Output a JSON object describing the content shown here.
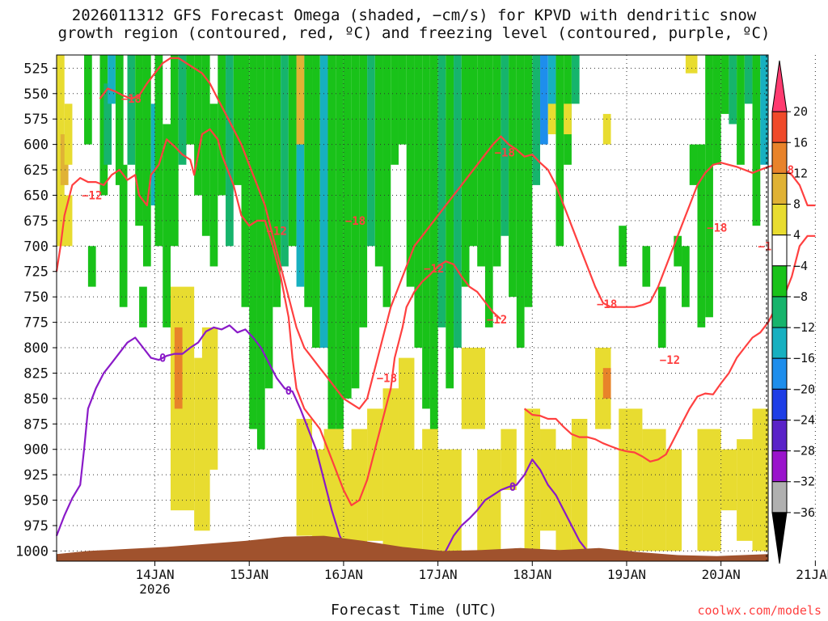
{
  "title_line1": "2026011312 GFS Forecast Omega (shaded, −cm/s) for KPVD with dendritic snow",
  "title_line2": "growth region (contoured, red, ºC) and freezing level (contoured, purple, ºC)",
  "xlabel": "Forecast Time (UTC)",
  "credit": "coolwx.com/models",
  "chart_data": {
    "type": "heatmap",
    "title": "2026011312 GFS Forecast Omega (shaded, −cm/s) for KPVD with dendritic snow growth region (contoured, red, ºC) and freezing level (contoured, purple, ºC)",
    "xlabel": "Forecast Time (UTC)",
    "ylabel": "",
    "y_unit": "hPa",
    "y_axis": "pressure, inverted (1000 at bottom)",
    "ylim": [
      1010,
      512
    ],
    "y_ticks": [
      "525",
      "550",
      "575",
      "600",
      "625",
      "650",
      "675",
      "700",
      "725",
      "750",
      "775",
      "800",
      "825",
      "850",
      "875",
      "900",
      "925",
      "950",
      "975",
      "1000"
    ],
    "xlim_hours": [
      -13,
      168
    ],
    "x_ticks": [
      {
        "label": "14JAN",
        "sub": "2026",
        "hour": 12
      },
      {
        "label": "15JAN",
        "sub": "",
        "hour": 36
      },
      {
        "label": "16JAN",
        "sub": "",
        "hour": 60
      },
      {
        "label": "17JAN",
        "sub": "",
        "hour": 84
      },
      {
        "label": "18JAN",
        "sub": "",
        "hour": 108
      },
      {
        "label": "19JAN",
        "sub": "",
        "hour": 132
      },
      {
        "label": "20JAN",
        "sub": "",
        "hour": 156
      },
      {
        "label": "21JAN",
        "sub": "",
        "hour": 180
      }
    ],
    "colorbar": {
      "labels": [
        "20",
        "16",
        "12",
        "8",
        "4",
        "−4",
        "−8",
        "−12",
        "−16",
        "−20",
        "−24",
        "−28",
        "−32",
        "−36"
      ],
      "colors": [
        "#ff3b70",
        "#f04a2a",
        "#e8832a",
        "#e0b235",
        "#e8dc30",
        "#ffffff",
        "#19c219",
        "#16b46c",
        "#17b0c0",
        "#1e8eec",
        "#1e3ee6",
        "#5a22c8",
        "#9a14cc",
        "#b0b0b0",
        "#000000"
      ]
    },
    "omega_colors": {
      "y4": "#e8dc30",
      "y8": "#e0b235",
      "o12": "#e8832a",
      "g4": "#19c219",
      "t8": "#16b46c",
      "c12": "#17b0c0",
      "b16": "#1e8eec",
      "terrain": "#a0522d"
    },
    "series": [
      {
        "name": "−12",
        "color": "#ff4040",
        "label_pos": [
          [
            -4,
            650
          ],
          [
            43,
            685
          ],
          [
            83,
            722
          ],
          [
            99,
            772
          ],
          [
            143,
            812
          ],
          [
            168,
            700
          ]
        ],
        "path": [
          [
            -13,
            725
          ],
          [
            -12,
            700
          ],
          [
            -11,
            670
          ],
          [
            -9,
            640
          ],
          [
            -7,
            633
          ],
          [
            -5,
            637
          ],
          [
            -3,
            637
          ],
          [
            -1,
            640
          ],
          [
            1,
            630
          ],
          [
            3,
            625
          ],
          [
            5,
            635
          ],
          [
            7,
            630
          ],
          [
            8,
            650
          ],
          [
            10,
            660
          ],
          [
            11,
            630
          ],
          [
            13,
            620
          ],
          [
            15,
            595
          ],
          [
            17,
            602
          ],
          [
            19,
            610
          ],
          [
            21,
            615
          ],
          [
            22,
            630
          ],
          [
            24,
            590
          ],
          [
            26,
            585
          ],
          [
            28,
            595
          ],
          [
            29,
            610
          ],
          [
            30,
            620
          ],
          [
            32,
            640
          ],
          [
            34,
            670
          ],
          [
            36,
            680
          ],
          [
            38,
            675
          ],
          [
            40,
            675
          ],
          [
            42,
            700
          ],
          [
            44,
            730
          ],
          [
            46,
            770
          ],
          [
            47,
            810
          ],
          [
            48,
            840
          ],
          [
            50,
            860
          ],
          [
            52,
            870
          ],
          [
            54,
            880
          ],
          [
            56,
            900
          ],
          [
            58,
            920
          ],
          [
            60,
            940
          ],
          [
            62,
            955
          ],
          [
            64,
            950
          ],
          [
            66,
            930
          ],
          [
            68,
            900
          ],
          [
            70,
            870
          ],
          [
            72,
            840
          ],
          [
            73,
            810
          ],
          [
            75,
            780
          ],
          [
            76,
            760
          ],
          [
            78,
            745
          ],
          [
            80,
            735
          ],
          [
            82,
            728
          ],
          [
            84,
            720
          ],
          [
            86,
            715
          ],
          [
            88,
            718
          ],
          [
            90,
            730
          ],
          [
            92,
            740
          ],
          [
            94,
            745
          ],
          [
            96,
            755
          ],
          [
            98,
            765
          ],
          [
            100,
            772
          ]
        ]
      },
      {
        "name": "−12",
        "color": "#ff4040",
        "path": [
          [
            106,
            860
          ],
          [
            108,
            866
          ],
          [
            110,
            867
          ],
          [
            112,
            870
          ],
          [
            114,
            870
          ],
          [
            116,
            878
          ],
          [
            118,
            885
          ],
          [
            120,
            888
          ],
          [
            122,
            888
          ],
          [
            124,
            890
          ],
          [
            126,
            894
          ],
          [
            128,
            897
          ],
          [
            130,
            900
          ],
          [
            132,
            902
          ],
          [
            134,
            903
          ],
          [
            136,
            907
          ],
          [
            138,
            912
          ],
          [
            140,
            910
          ],
          [
            142,
            905
          ],
          [
            144,
            890
          ],
          [
            146,
            875
          ],
          [
            148,
            860
          ],
          [
            150,
            848
          ],
          [
            152,
            845
          ],
          [
            154,
            846
          ],
          [
            156,
            835
          ],
          [
            158,
            825
          ],
          [
            160,
            810
          ],
          [
            162,
            800
          ],
          [
            164,
            790
          ],
          [
            166,
            785
          ],
          [
            168,
            775
          ],
          [
            170,
            760
          ],
          [
            172,
            750
          ],
          [
            174,
            730
          ],
          [
            176,
            700
          ],
          [
            178,
            690
          ],
          [
            180,
            690
          ]
        ]
      },
      {
        "name": "−18",
        "color": "#ff4040",
        "label_pos": [
          [
            6,
            555
          ],
          [
            63,
            675
          ],
          [
            71,
            830
          ],
          [
            101,
            608
          ],
          [
            127,
            757
          ],
          [
            155,
            682
          ],
          [
            172,
            625
          ]
        ],
        "path": [
          [
            -2,
            555
          ],
          [
            0,
            545
          ],
          [
            2,
            548
          ],
          [
            4,
            552
          ],
          [
            6,
            555
          ],
          [
            8,
            552
          ],
          [
            10,
            540
          ],
          [
            12,
            530
          ],
          [
            14,
            520
          ],
          [
            16,
            515
          ],
          [
            18,
            515
          ],
          [
            20,
            520
          ],
          [
            22,
            525
          ],
          [
            24,
            530
          ],
          [
            26,
            540
          ],
          [
            28,
            555
          ],
          [
            30,
            570
          ],
          [
            32,
            585
          ],
          [
            34,
            600
          ],
          [
            36,
            620
          ],
          [
            38,
            640
          ],
          [
            40,
            660
          ],
          [
            42,
            690
          ],
          [
            44,
            720
          ],
          [
            46,
            750
          ],
          [
            48,
            780
          ],
          [
            50,
            800
          ],
          [
            52,
            810
          ],
          [
            54,
            820
          ],
          [
            56,
            830
          ],
          [
            58,
            840
          ],
          [
            60,
            850
          ],
          [
            62,
            855
          ],
          [
            64,
            860
          ],
          [
            66,
            850
          ],
          [
            68,
            820
          ],
          [
            70,
            790
          ],
          [
            72,
            760
          ],
          [
            74,
            740
          ],
          [
            76,
            720
          ],
          [
            78,
            700
          ],
          [
            80,
            690
          ],
          [
            82,
            680
          ],
          [
            84,
            670
          ],
          [
            86,
            660
          ],
          [
            88,
            650
          ],
          [
            90,
            640
          ],
          [
            92,
            630
          ],
          [
            94,
            620
          ],
          [
            96,
            610
          ],
          [
            98,
            600
          ],
          [
            100,
            592
          ],
          [
            102,
            600
          ],
          [
            104,
            605
          ],
          [
            106,
            612
          ],
          [
            108,
            610
          ],
          [
            110,
            618
          ],
          [
            112,
            625
          ],
          [
            114,
            640
          ],
          [
            116,
            660
          ],
          [
            118,
            680
          ],
          [
            120,
            700
          ],
          [
            122,
            720
          ],
          [
            124,
            740
          ],
          [
            126,
            756
          ],
          [
            128,
            760
          ],
          [
            130,
            760
          ],
          [
            132,
            760
          ],
          [
            134,
            760
          ],
          [
            136,
            758
          ],
          [
            138,
            755
          ],
          [
            140,
            740
          ],
          [
            142,
            720
          ],
          [
            144,
            700
          ],
          [
            146,
            680
          ],
          [
            148,
            660
          ],
          [
            150,
            640
          ],
          [
            152,
            628
          ],
          [
            154,
            620
          ],
          [
            156,
            618
          ],
          [
            158,
            620
          ],
          [
            160,
            622
          ],
          [
            162,
            625
          ],
          [
            164,
            628
          ],
          [
            166,
            625
          ],
          [
            168,
            622
          ],
          [
            170,
            620
          ],
          [
            172,
            625
          ],
          [
            174,
            630
          ],
          [
            176,
            640
          ],
          [
            178,
            660
          ],
          [
            180,
            660
          ]
        ]
      },
      {
        "name": "0",
        "color": "#8a1ac8",
        "label_pos": [
          [
            14,
            810
          ],
          [
            46,
            842
          ],
          [
            103,
            937
          ]
        ],
        "path": [
          [
            -13,
            985
          ],
          [
            -11,
            965
          ],
          [
            -9,
            948
          ],
          [
            -7,
            935
          ],
          [
            -6,
            900
          ],
          [
            -5,
            860
          ],
          [
            -3,
            840
          ],
          [
            -1,
            825
          ],
          [
            1,
            815
          ],
          [
            3,
            805
          ],
          [
            5,
            795
          ],
          [
            7,
            790
          ],
          [
            9,
            800
          ],
          [
            11,
            810
          ],
          [
            13,
            812
          ],
          [
            15,
            808
          ],
          [
            17,
            806
          ],
          [
            19,
            806
          ],
          [
            21,
            800
          ],
          [
            23,
            795
          ],
          [
            25,
            784
          ],
          [
            27,
            780
          ],
          [
            29,
            782
          ],
          [
            31,
            778
          ],
          [
            33,
            785
          ],
          [
            35,
            782
          ],
          [
            37,
            790
          ],
          [
            39,
            800
          ],
          [
            41,
            815
          ],
          [
            43,
            830
          ],
          [
            45,
            840
          ],
          [
            47,
            843
          ],
          [
            49,
            860
          ],
          [
            51,
            880
          ],
          [
            53,
            900
          ],
          [
            55,
            930
          ],
          [
            57,
            960
          ],
          [
            59,
            985
          ],
          [
            61,
            1000
          ]
        ]
      },
      {
        "name": "0",
        "color": "#8a1ac8",
        "path": [
          [
            86,
            1000
          ],
          [
            88,
            985
          ],
          [
            90,
            975
          ],
          [
            92,
            968
          ],
          [
            94,
            960
          ],
          [
            96,
            950
          ],
          [
            98,
            945
          ],
          [
            100,
            940
          ],
          [
            102,
            937
          ],
          [
            104,
            935
          ],
          [
            106,
            925
          ],
          [
            108,
            910
          ],
          [
            110,
            920
          ],
          [
            112,
            935
          ],
          [
            114,
            945
          ],
          [
            116,
            960
          ],
          [
            118,
            975
          ],
          [
            120,
            990
          ],
          [
            122,
            1000
          ]
        ]
      }
    ]
  }
}
